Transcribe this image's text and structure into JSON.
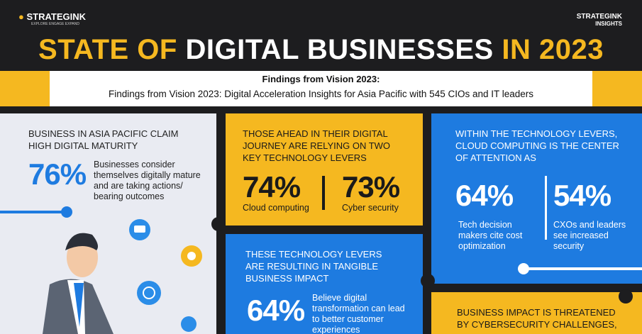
{
  "header": {
    "logo": "STRATEGINK",
    "logo_tagline": "EXPLORE ENGAGE EXPAND",
    "logo_right": "STRATEGINK",
    "logo_right_sub": "INSIGHTS",
    "title_part1": "STATE OF",
    "title_part2": "DIGITAL BUSINESSES",
    "title_part3": "IN 2023",
    "subtitle_bold": "Findings from Vision 2023:",
    "subtitle": "Findings from  Vision 2023: Digital Acceleration Insights for Asia Pacific with 545 CIOs and IT leaders"
  },
  "panels": [
    {
      "heading": "BUSINESS IN ASIA PACIFIC CLAIM HIGH DIGITAL MATURITY",
      "stats": [
        {
          "value": "76%",
          "text": "Businesses consider themselves digitally mature and are taking actions/ bearing outcomes"
        }
      ]
    },
    {
      "heading": "THOSE AHEAD IN THEIR DIGITAL JOURNEY ARE RELYING ON TWO KEY TECHNOLOGY LEVERS",
      "stats": [
        {
          "value": "74%",
          "text": "Cloud computing"
        },
        {
          "value": "73%",
          "text": "Cyber security"
        }
      ]
    },
    {
      "heading": "WITHIN THE TECHNOLOGY LEVERS, CLOUD COMPUTING IS THE CENTER OF ATTENTION AS",
      "stats": [
        {
          "value": "64%",
          "text": "Tech decision makers cite cost optimization"
        },
        {
          "value": "54%",
          "text": "CXOs and leaders see increased security"
        }
      ]
    },
    {
      "heading": "THESE TECHNOLOGY LEVERS ARE RESULTING IN TANGIBLE BUSINESS IMPACT",
      "stats": [
        {
          "value": "64%",
          "text": "Believe digital transformation can lead to better customer experiences"
        }
      ]
    },
    {
      "heading": "BUSINESS IMPACT IS THREATENED BY CYBERSECURITY CHALLENGES,",
      "stats": []
    }
  ]
}
